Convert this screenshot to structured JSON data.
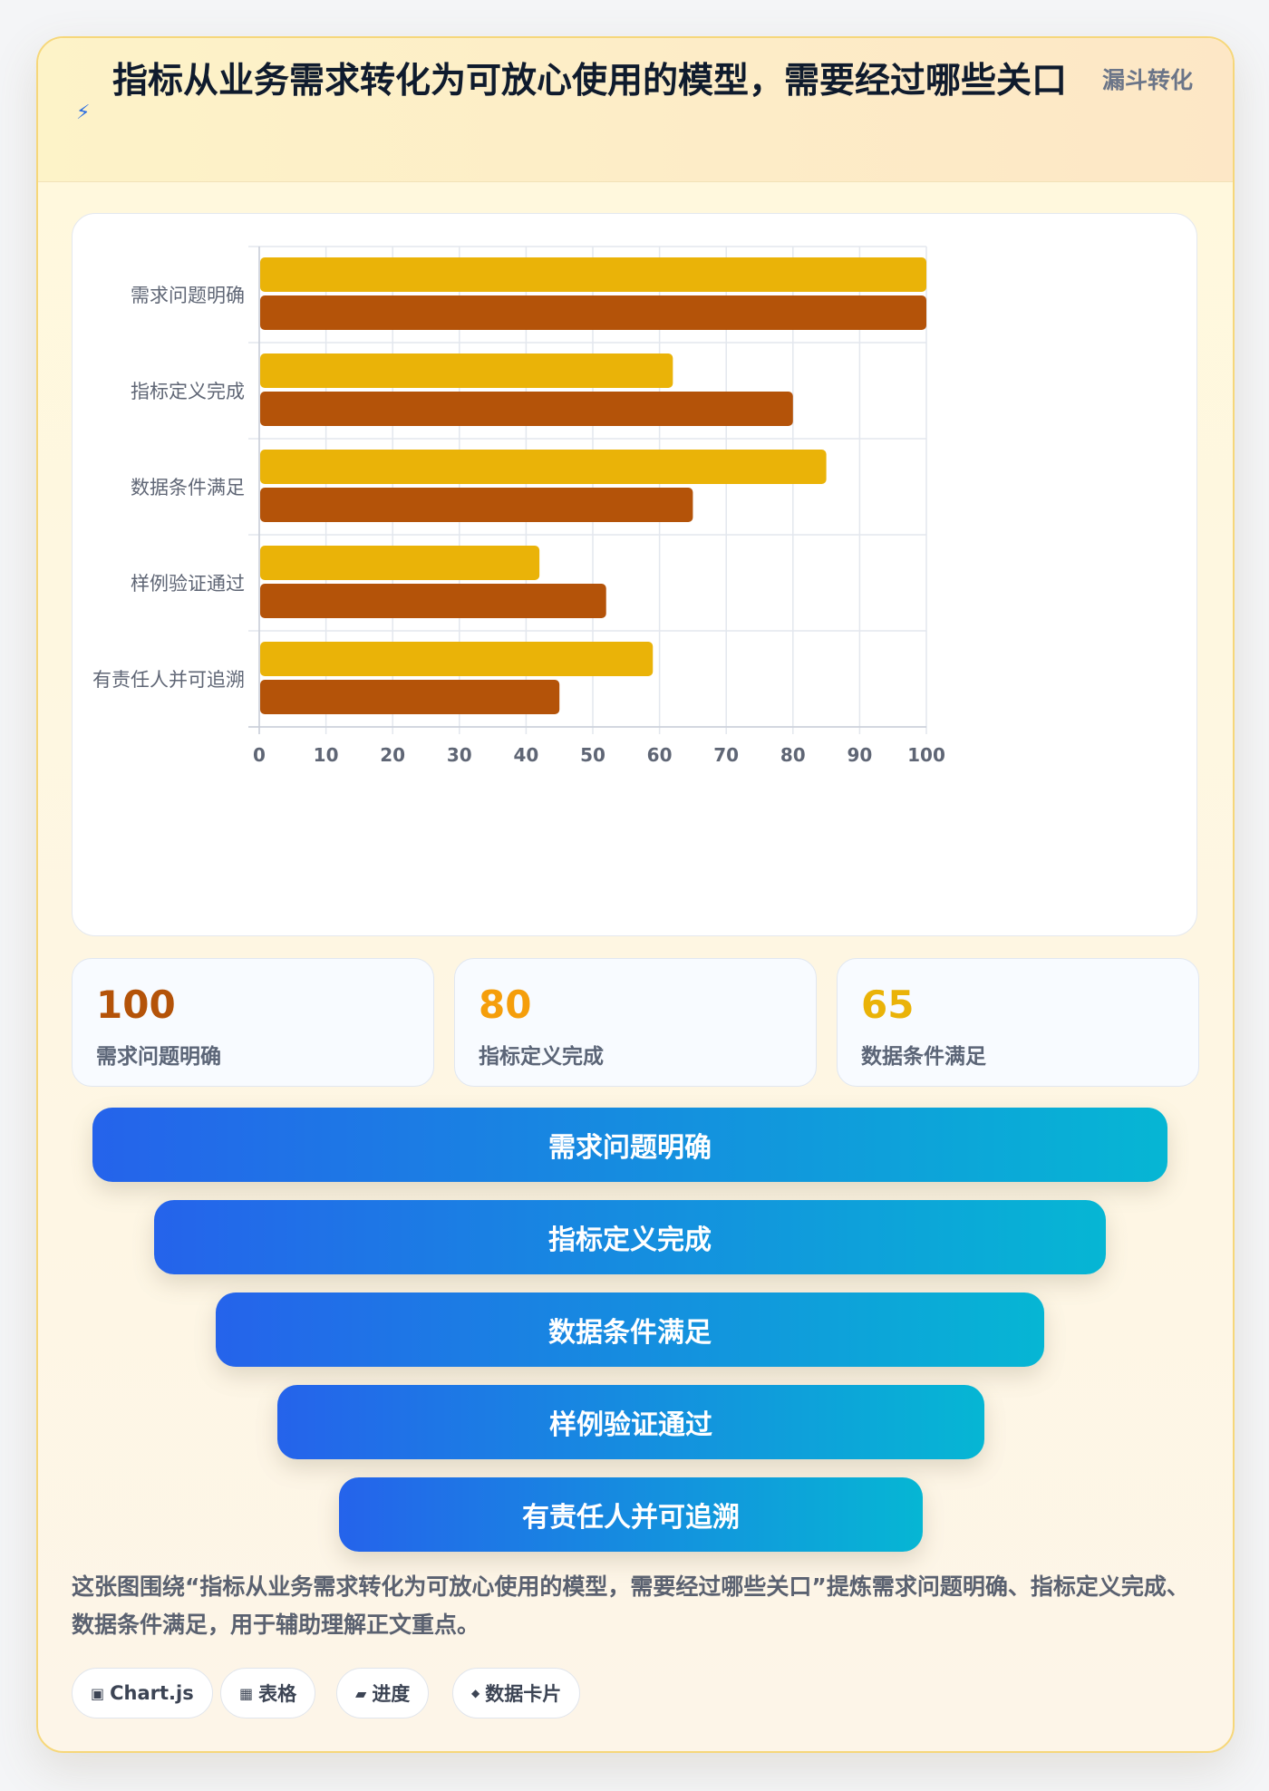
{
  "header": {
    "bolt_icon": "⚡",
    "title": "指标从业务需求转化为可放心使用的模型，需要经过哪些关口",
    "tag": "漏斗转化"
  },
  "chart_data": {
    "type": "bar",
    "orientation": "horizontal",
    "categories": [
      "需求问题明确",
      "指标定义完成",
      "数据条件满足",
      "样例验证通过",
      "有责任人并可追溯"
    ],
    "series": [
      {
        "values": [
          100,
          62,
          85,
          42,
          59
        ],
        "color": "#eab308"
      },
      {
        "values": [
          100,
          80,
          65,
          52,
          45
        ],
        "color": "#b45309"
      }
    ],
    "xlim": [
      0,
      100
    ],
    "xticks": [
      0,
      10,
      20,
      30,
      40,
      50,
      60,
      70,
      80,
      90,
      100
    ],
    "grid": true,
    "legend": "none"
  },
  "stats": [
    {
      "value": "100",
      "label": "需求问题明确",
      "color": "#b45309"
    },
    {
      "value": "80",
      "label": "指标定义完成",
      "color": "#f59e0b"
    },
    {
      "value": "65",
      "label": "数据条件满足",
      "color": "#eab308"
    }
  ],
  "funnel": {
    "stages": [
      "需求问题明确",
      "指标定义完成",
      "数据条件满足",
      "样例验证通过",
      "有责任人并可追溯"
    ]
  },
  "description": "这张图围绕“指标从业务需求转化为可放心使用的模型，需要经过哪些关口”提炼需求问题明确、指标定义完成、数据条件满足，用于辅助理解正文重点。",
  "chips": [
    {
      "icon": "▣",
      "label": "Chart.js",
      "icon_name": "chart-icon"
    },
    {
      "icon": "▦",
      "label": "表格",
      "icon_name": "table-icon"
    },
    {
      "icon": "▰",
      "label": "进度",
      "icon_name": "progress-icon"
    },
    {
      "icon": "◆",
      "label": "数据卡片",
      "icon_name": "data-card-icon"
    }
  ]
}
